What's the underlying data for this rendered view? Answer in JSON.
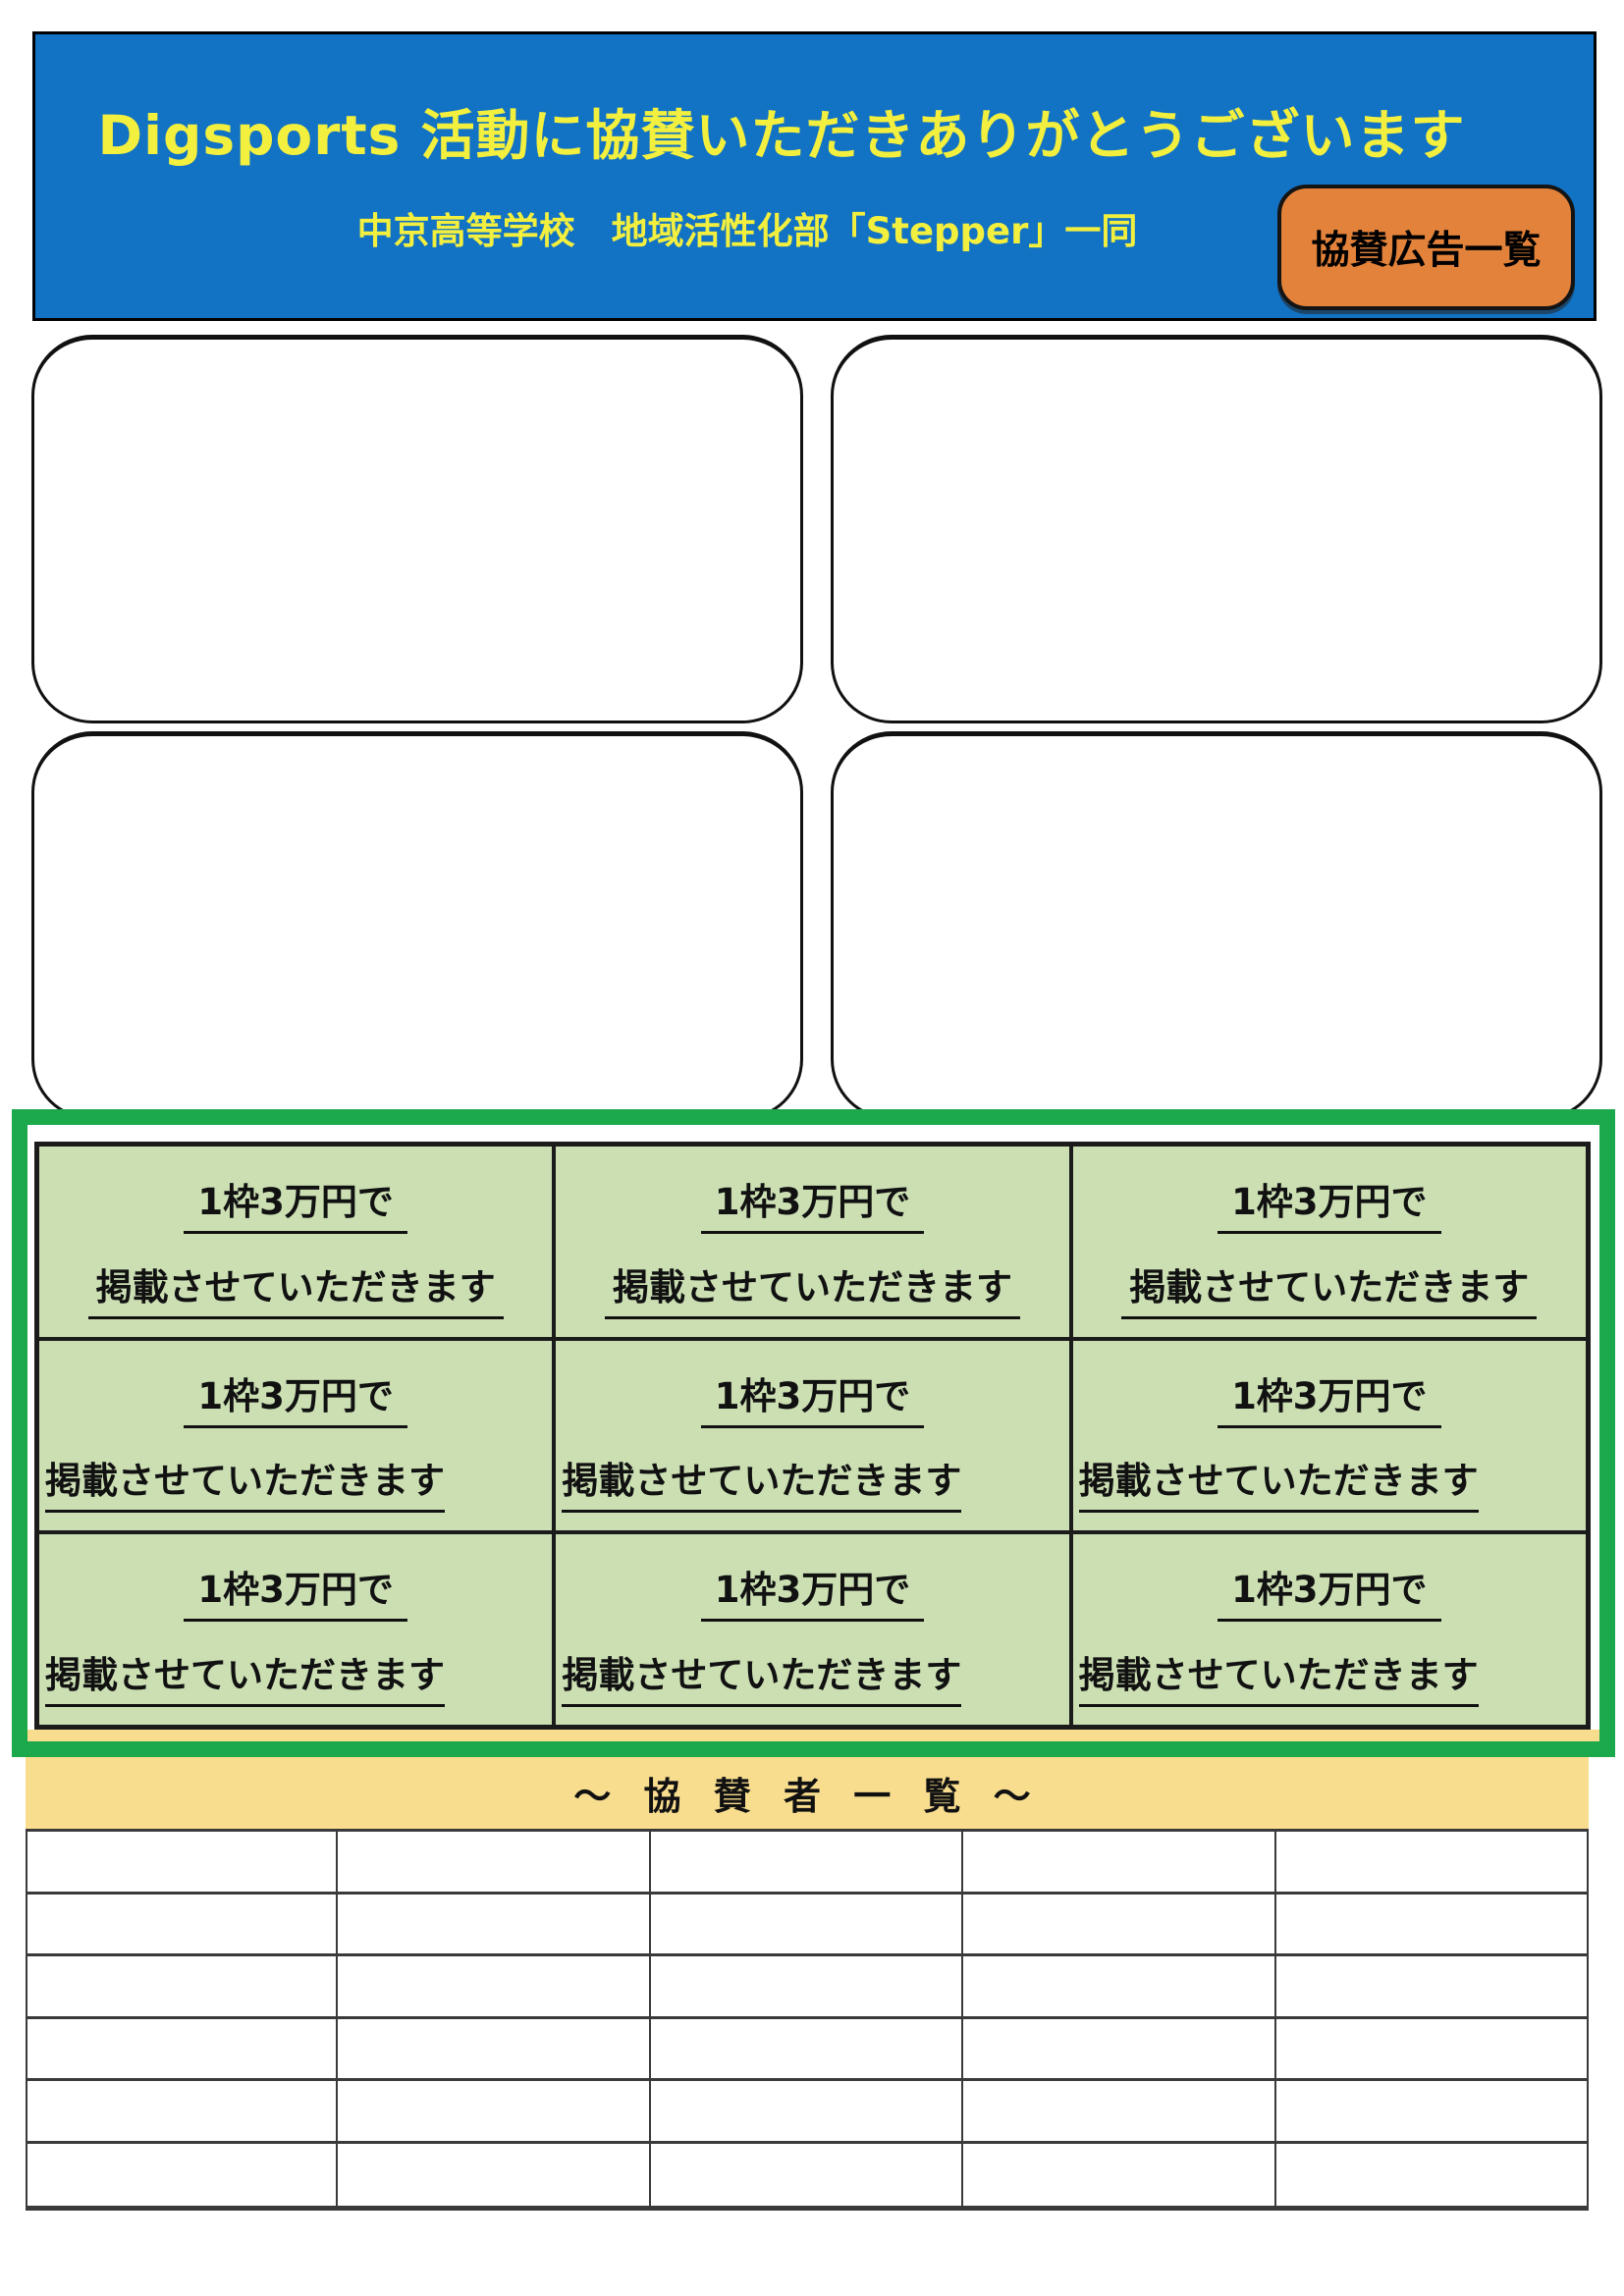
{
  "header": {
    "title": "Digsports 活動に協賛いただきありがとうございます",
    "subtitle": "中京高等学校　地域活性化部「Stepper」一同",
    "button_label": "協賛広告一覧",
    "bg_color": "#1272C4",
    "text_color": "#F2EF3E",
    "button_color": "#E3823A"
  },
  "ad_placeholders": {
    "count": 4,
    "note": "empty rounded ad slots"
  },
  "pricing": {
    "cell_line1": "1枠3万円で",
    "cell_line2": "掲載させていただきます",
    "rows": 3,
    "cols": 3,
    "frame_color": "#1BA94C",
    "cell_bg_color": "#CBDFB3"
  },
  "banner": {
    "label": "～ 協 賛 者 一 覧 ～",
    "bg_color": "#F8DD8E"
  },
  "sponsor_table": {
    "rows": 6,
    "cols": 5
  }
}
